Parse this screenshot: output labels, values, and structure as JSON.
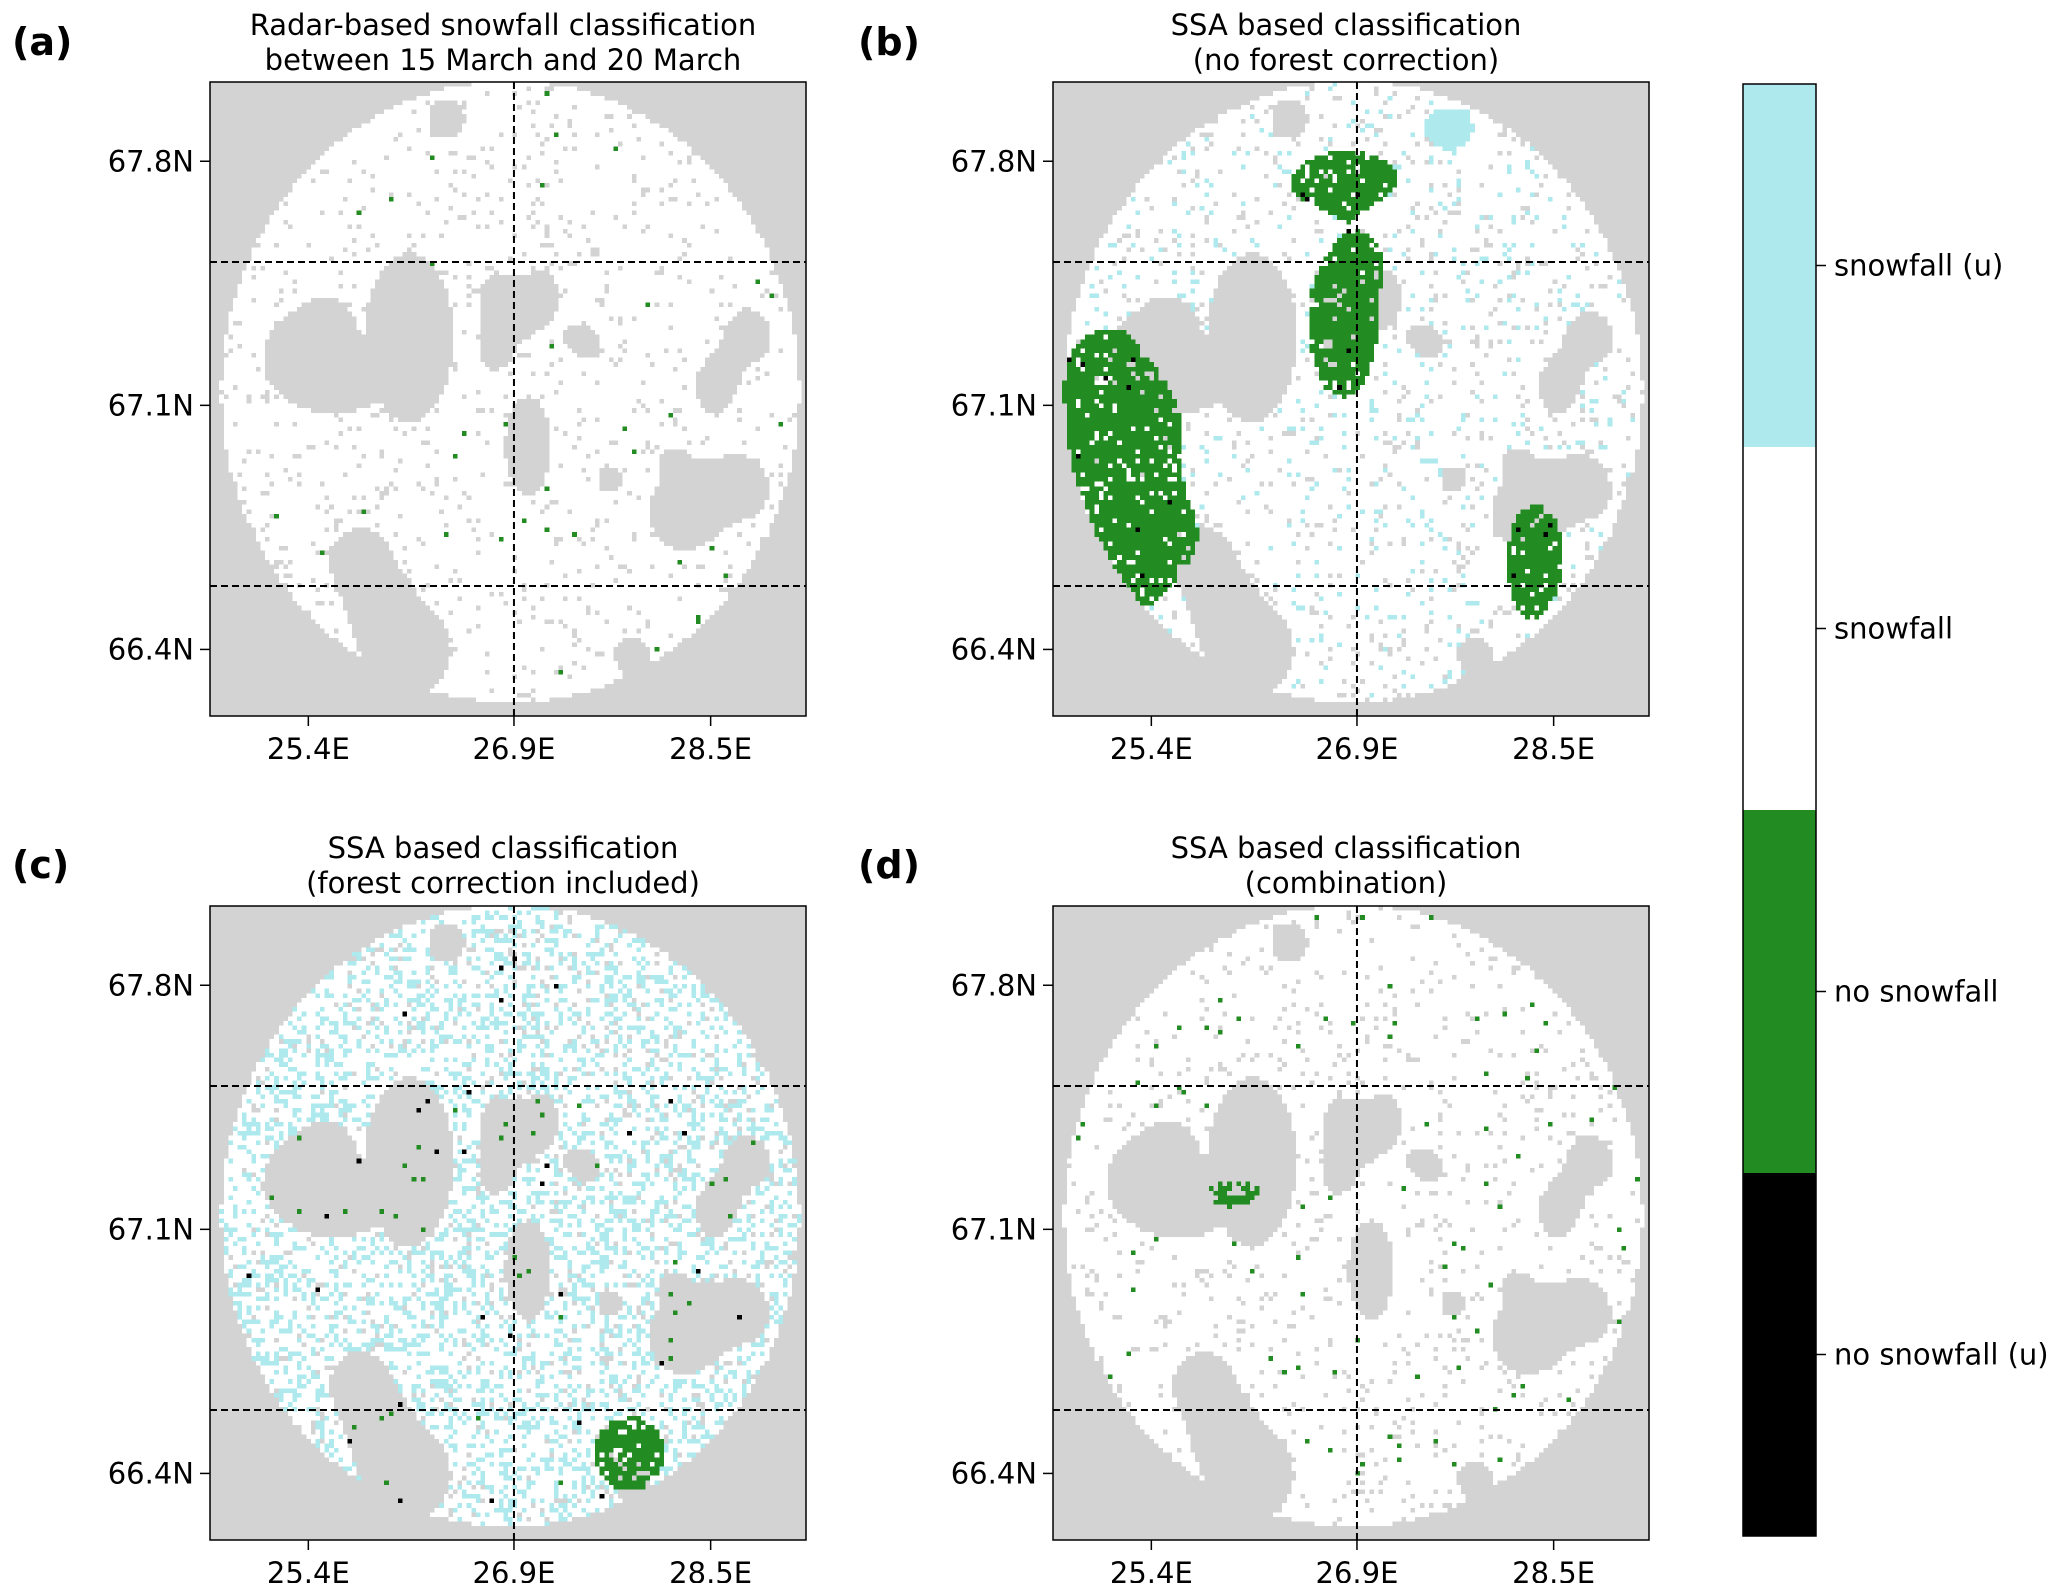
{
  "figure": {
    "panels": [
      {
        "id": "a",
        "label": "(a)",
        "title_lines": [
          "Radar-based snowfall classification",
          "between 15 March and 20 March"
        ],
        "variant": "radar"
      },
      {
        "id": "b",
        "label": "(b)",
        "title_lines": [
          "SSA based classification",
          "(no forest correction)"
        ],
        "variant": "noforest"
      },
      {
        "id": "c",
        "label": "(c)",
        "title_lines": [
          "SSA based classification",
          "(forest correction included)"
        ],
        "variant": "forest"
      },
      {
        "id": "d",
        "label": "(d)",
        "title_lines": [
          "SSA based classification",
          "(combination)"
        ],
        "variant": "combination"
      }
    ],
    "lat_ticks": [
      "67.8N",
      "67.1N",
      "66.4N"
    ],
    "lon_ticks": [
      "25.4E",
      "26.9E",
      "28.5E"
    ],
    "colorbar": {
      "entries": [
        {
          "label": "snowfall (u)",
          "color": "#aeeaed"
        },
        {
          "label": "snowfall",
          "color": "#ffffff"
        },
        {
          "label": "no snowfall",
          "color": "#228b22"
        },
        {
          "label": "no snowfall (u)",
          "color": "#000000"
        }
      ]
    },
    "colors": {
      "background_gray": "#d3d3d3",
      "snowfall_white": "#ffffff",
      "no_snowfall_green": "#228b22",
      "snowfall_u_cyan": "#aeeaed",
      "no_snowfall_u_black": "#000000",
      "axis_color": "#000000"
    }
  }
}
